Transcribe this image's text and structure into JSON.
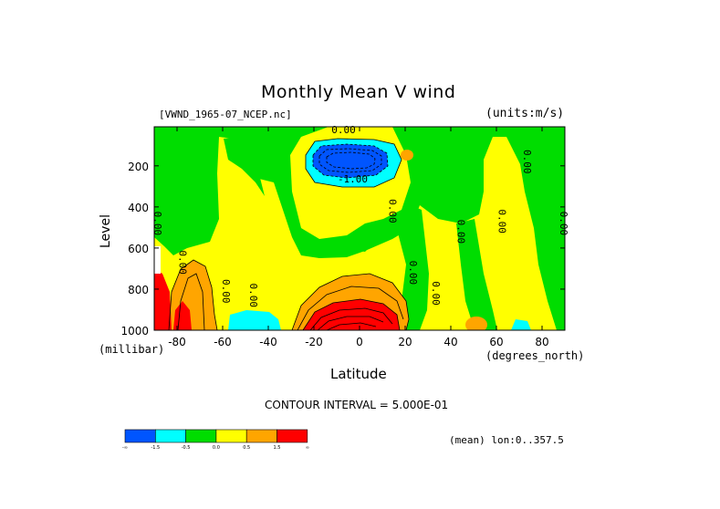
{
  "chart_data": {
    "type": "heatmap",
    "title": "Monthly Mean V wind",
    "file_label": "[VWND_1965-07_NCEP.nc]",
    "units_label": "(units:m/s)",
    "xlabel": "Latitude",
    "x_units": "(degrees_north)",
    "ylabel": "Level",
    "y_units": "(millibar)",
    "xlim": [
      -90,
      90
    ],
    "ylim": [
      1000,
      10
    ],
    "x_ticks": [
      -80,
      -60,
      -40,
      -20,
      0,
      20,
      40,
      60,
      80
    ],
    "y_ticks": [
      1000,
      800,
      600,
      400,
      200
    ],
    "contour_interval_label": "CONTOUR INTERVAL = 5.000E-01",
    "mean_label": "(mean) lon:0..357.5",
    "contour_labels": [
      "0.00",
      "-1.00",
      "0.00",
      "0.00",
      "0.00",
      "0.00",
      "0.00",
      "0.00",
      "0.00",
      "0.00",
      "0.00",
      "0.00",
      "0.00"
    ],
    "colorbar": {
      "colors": [
        "#0055ff",
        "#00ffff",
        "#00dd00",
        "#ffff00",
        "#ffa500",
        "#ff0000"
      ],
      "labels": [
        "-∞",
        "-1.5",
        "-0.5",
        "0.0",
        "0.5",
        "1.5",
        "∞"
      ]
    },
    "regions": [
      {
        "value": "0.0 to 0.5",
        "color": "#ffff00",
        "lat": [
          -90,
          90
        ],
        "lev": [
          1000,
          10
        ]
      },
      {
        "value": "-0.5 to 0.0",
        "color": "#00dd00",
        "lat": [
          -90,
          -60
        ],
        "lev": [
          600,
          10
        ]
      },
      {
        "value": "-0.5 to 0.0",
        "color": "#00dd00",
        "lat": [
          -20,
          30
        ],
        "lev": [
          600,
          250
        ]
      },
      {
        "value": "-1.5 to -0.5",
        "color": "#00ffff",
        "lat": [
          -12,
          12
        ],
        "lev": [
          320,
          80
        ]
      },
      {
        "value": "-∞ to -1.5",
        "color": "#0055ff",
        "lat": [
          -8,
          8
        ],
        "lev": [
          250,
          100
        ]
      },
      {
        "value": "0.5 to 1.5",
        "color": "#ffa500",
        "lat": [
          -25,
          20
        ],
        "lev": [
          1000,
          800
        ]
      },
      {
        "value": "1.5 to ∞",
        "color": "#ff0000",
        "lat": [
          -20,
          15
        ],
        "lev": [
          1000,
          880
        ]
      },
      {
        "value": "-1.5 to -0.5",
        "color": "#00ffff",
        "lat": [
          -58,
          -35
        ],
        "lev": [
          1000,
          920
        ]
      }
    ]
  }
}
